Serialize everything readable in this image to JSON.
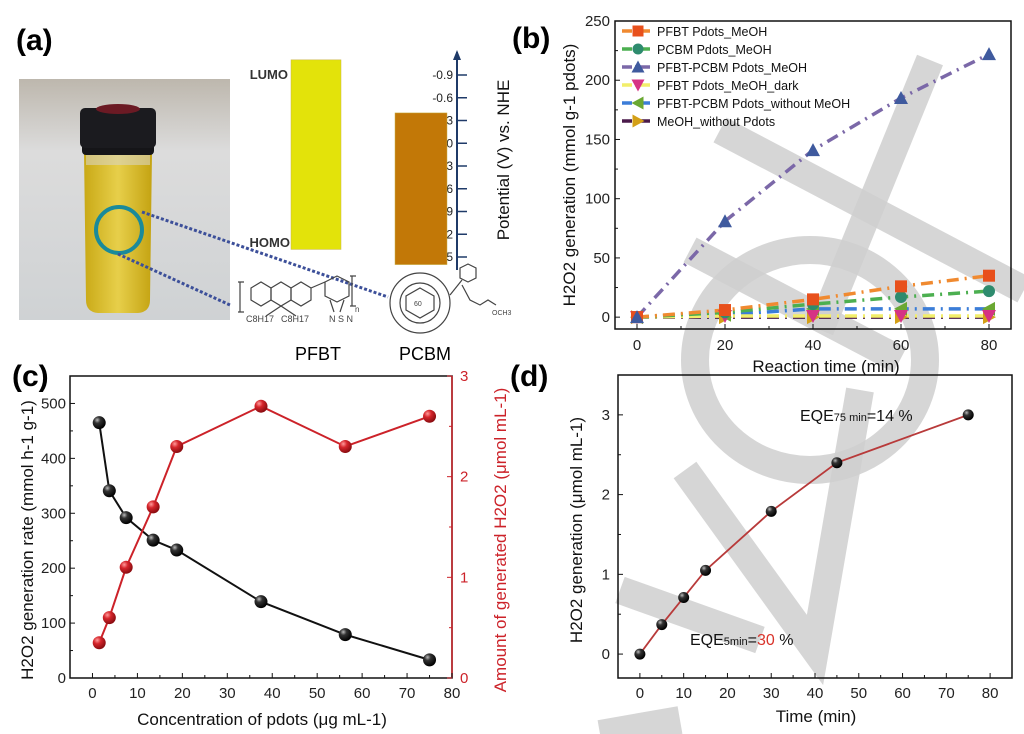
{
  "figure": {
    "panels": [
      "(a)",
      "(b)",
      "(c)",
      "(d)"
    ],
    "panel_a": {
      "energy_levels": {
        "labels": {
          "lumo": "LUMO",
          "homo": "HOMO"
        },
        "materials": [
          {
            "name": "PFBT",
            "lumo_V": -1.1,
            "homo_V": 1.4,
            "color": "#e3e30a"
          },
          {
            "name": "PCBM",
            "lumo_V": -0.4,
            "homo_V": 1.6,
            "color": "#c27807"
          }
        ],
        "axis_title": "Potential (V) vs. NHE",
        "ticks": [
          "-0.9",
          "-0.6",
          "-0.3",
          "0",
          "0.3",
          "0.6",
          "0.9",
          "1.2",
          "1.5"
        ],
        "axis_color": "#1f3a68"
      },
      "structures": {
        "pfbt_substituents": [
          "C8H17",
          "C8H17"
        ],
        "pfbt_repeat": "n",
        "pcbm_core": "60",
        "pcbm_ester": "OCH3"
      },
      "photo": {
        "description": "vial with yellow Pdots solution",
        "highlight_color": "#1a8a9a"
      }
    }
  },
  "chart_data": [
    {
      "id": "b",
      "type": "line",
      "title": "",
      "xlabel": "Reaction time (min)",
      "ylabel": "H2O2 generation (mmol g-1 pdots)",
      "xlim": [
        -5,
        85
      ],
      "ylim": [
        -10,
        250
      ],
      "xticks": [
        0,
        20,
        40,
        60,
        80
      ],
      "yticks": [
        0,
        50,
        100,
        150,
        200,
        250
      ],
      "legend_position": "top-left",
      "grid": false,
      "x": [
        0,
        20,
        40,
        60,
        80
      ],
      "series": [
        {
          "name": "PFBT Pdots_MeOH",
          "values": [
            0,
            6,
            15,
            26,
            35
          ],
          "line_color": "#f08a30",
          "marker_color": "#e8501c",
          "marker": "square"
        },
        {
          "name": "PCBM Pdots_MeOH",
          "values": [
            0,
            4,
            11,
            17,
            22
          ],
          "line_color": "#4caf50",
          "marker_color": "#2e8b6e",
          "marker": "circle"
        },
        {
          "name": "PFBT-PCBM Pdots_MeOH",
          "values": [
            0,
            81,
            141,
            185,
            222
          ],
          "line_color": "#7b68a8",
          "marker_color": "#3f5a9e",
          "marker": "triangle-up"
        },
        {
          "name": "PFBT Pdots_MeOH_dark",
          "values": [
            0,
            1,
            1,
            1,
            1
          ],
          "line_color": "#f2ee6a",
          "marker_color": "#d63384",
          "marker": "triangle-down"
        },
        {
          "name": "PFBT-PCBM Pdots_without MeOH",
          "values": [
            0,
            2,
            7,
            7,
            7
          ],
          "line_color": "#3b7dd8",
          "marker_color": "#6aa832",
          "marker": "triangle-left"
        },
        {
          "name": "MeOH_without Pdots",
          "values": [
            0,
            0,
            0,
            0,
            0
          ],
          "line_color": "#4a1a4a",
          "marker_color": "#d4a017",
          "marker": "triangle-right"
        }
      ]
    },
    {
      "id": "c",
      "type": "line",
      "title": "",
      "xlabel": "Concentration of pdots (μg mL-1)",
      "ylabel": "H2O2 generation rate (mmol h-1 g-1)",
      "y2label": "Amount of generated H2O2 (μmol mL-1)",
      "xlim": [
        -5,
        80
      ],
      "ylim": [
        0,
        550
      ],
      "y2lim": [
        0,
        3
      ],
      "xticks": [
        0,
        10,
        20,
        30,
        40,
        50,
        60,
        70,
        80
      ],
      "yticks": [
        0,
        100,
        200,
        300,
        400,
        500
      ],
      "y2ticks": [
        0,
        1,
        2,
        3
      ],
      "grid": false,
      "x": [
        1.5,
        3.75,
        7.5,
        13.5,
        18.75,
        37.5,
        56.25,
        75
      ],
      "series": [
        {
          "name": "H2O2 generation rate",
          "axis": "left",
          "values": [
            465,
            341,
            292,
            251,
            233,
            139,
            79,
            33
          ],
          "color": "#111111"
        },
        {
          "name": "Amount of generated H2O2",
          "axis": "right",
          "values": [
            0.35,
            0.6,
            1.1,
            1.7,
            2.3,
            2.7,
            2.3,
            2.6
          ],
          "color": "#cc2229"
        }
      ]
    },
    {
      "id": "d",
      "type": "line",
      "title": "",
      "xlabel": "Time (min)",
      "ylabel": "H2O2 generation (μmol mL-1)",
      "xlim": [
        -5,
        85
      ],
      "ylim": [
        -0.3,
        3.5
      ],
      "xticks": [
        0,
        10,
        20,
        30,
        40,
        50,
        60,
        70,
        80
      ],
      "yticks": [
        0,
        1,
        2,
        3
      ],
      "grid": false,
      "x": [
        0,
        5,
        10,
        15,
        30,
        45,
        75
      ],
      "series": [
        {
          "name": "H2O2 generation",
          "values": [
            0,
            0.37,
            0.71,
            1.05,
            1.79,
            2.4,
            3.0
          ],
          "line_color": "#b83a3a",
          "marker_color": "#111111"
        }
      ],
      "annotations": [
        {
          "prefix": "EQE",
          "sub": "75 min",
          "eq": "=",
          "value": "14",
          "unit": " %",
          "value_color": "#111111",
          "near_x": 75
        },
        {
          "prefix": "EQE",
          "sub": "5min",
          "eq": "=",
          "value": "30",
          "unit": " %",
          "value_color": "#d9342b",
          "near_x": 5
        }
      ]
    }
  ]
}
